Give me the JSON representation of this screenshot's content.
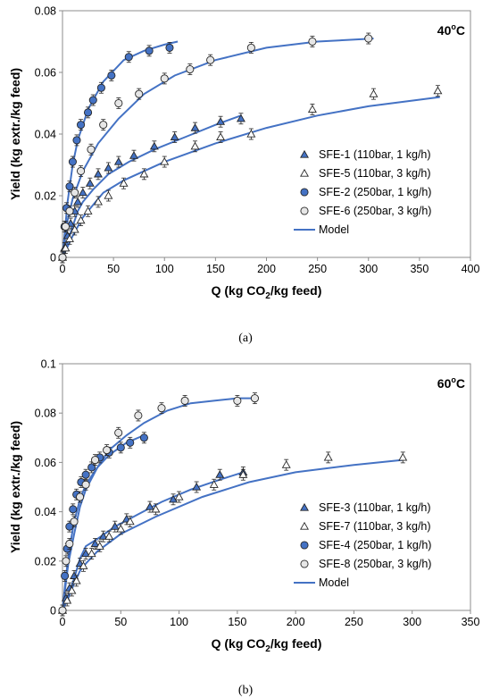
{
  "chart_data": [
    {
      "type": "scatter",
      "caption": "(a)",
      "temp_main": "40",
      "temp_sup": "o",
      "temp_unit": "C",
      "ylabel": "Yield (kg extr./kg feed)",
      "xlabel_pre": "Q (kg CO",
      "xlabel_sub": "2",
      "xlabel_post": "/kg feed)",
      "xlim": [
        0,
        400
      ],
      "ylim": [
        0,
        0.08
      ],
      "xticks": [
        0,
        50,
        100,
        150,
        200,
        250,
        300,
        350,
        400
      ],
      "xtick_labels": [
        "0",
        "50",
        "100",
        "150",
        "200",
        "250",
        "300",
        "350",
        "400"
      ],
      "yticks": [
        0,
        0.02,
        0.04,
        0.06,
        0.08
      ],
      "ytick_labels": [
        "0",
        "0.02",
        "0.04",
        "0.06",
        "0.08"
      ],
      "legend_position": "center-right",
      "legend_model_label": "Model",
      "series": [
        {
          "name": "SFE-1 (110bar, 1 kg/h)",
          "marker": "triangle",
          "fill": "#4472c4",
          "x": [
            0,
            2,
            5,
            8,
            12,
            15,
            20,
            27,
            35,
            45,
            55,
            70,
            90,
            110,
            130,
            155,
            175
          ],
          "y": [
            0,
            0.003,
            0.007,
            0.011,
            0.015,
            0.018,
            0.021,
            0.024,
            0.027,
            0.029,
            0.031,
            0.033,
            0.036,
            0.039,
            0.042,
            0.044,
            0.045
          ]
        },
        {
          "name": "SFE-5 (110bar, 3 kg/h)",
          "marker": "triangle",
          "fill": "#ffffff",
          "x": [
            0,
            3,
            7,
            12,
            18,
            25,
            35,
            45,
            60,
            80,
            100,
            130,
            155,
            185,
            245,
            305,
            368
          ],
          "y": [
            0,
            0.003,
            0.006,
            0.009,
            0.012,
            0.015,
            0.018,
            0.02,
            0.024,
            0.027,
            0.031,
            0.036,
            0.039,
            0.04,
            0.048,
            0.053,
            0.054
          ]
        },
        {
          "name": "SFE-2 (250bar, 1 kg/h)",
          "marker": "circle",
          "fill": "#4472c4",
          "x": [
            0,
            2,
            4,
            7,
            10,
            14,
            18,
            25,
            30,
            38,
            48,
            65,
            85,
            105
          ],
          "y": [
            0,
            0.01,
            0.016,
            0.023,
            0.031,
            0.038,
            0.043,
            0.047,
            0.051,
            0.055,
            0.059,
            0.065,
            0.067,
            0.068
          ]
        },
        {
          "name": "SFE-6 (250bar, 3 kg/h)",
          "marker": "circle",
          "fill": "#e6e6e6",
          "x": [
            0,
            3,
            7,
            12,
            18,
            28,
            40,
            55,
            75,
            100,
            125,
            145,
            185,
            245,
            300
          ],
          "y": [
            0,
            0.01,
            0.015,
            0.021,
            0.028,
            0.035,
            0.043,
            0.05,
            0.053,
            0.058,
            0.061,
            0.064,
            0.068,
            0.07,
            0.071
          ]
        }
      ],
      "model": [
        {
          "x": [
            0,
            5,
            10,
            15,
            25,
            40,
            60,
            80,
            100,
            113
          ],
          "y": [
            0,
            0.018,
            0.03,
            0.038,
            0.048,
            0.057,
            0.064,
            0.067,
            0.069,
            0.07
          ]
        },
        {
          "x": [
            0,
            5,
            10,
            20,
            35,
            55,
            80,
            110,
            150,
            200,
            250,
            305
          ],
          "y": [
            0,
            0.012,
            0.019,
            0.028,
            0.037,
            0.045,
            0.053,
            0.059,
            0.064,
            0.068,
            0.07,
            0.071
          ]
        },
        {
          "x": [
            0,
            5,
            10,
            15,
            20,
            30,
            45,
            65,
            90,
            120,
            150,
            175
          ],
          "y": [
            0,
            0.005,
            0.01,
            0.015,
            0.018,
            0.022,
            0.027,
            0.031,
            0.035,
            0.039,
            0.043,
            0.046
          ]
        },
        {
          "x": [
            0,
            10,
            20,
            30,
            40,
            60,
            100,
            150,
            200,
            250,
            300,
            370
          ],
          "y": [
            0,
            0.007,
            0.013,
            0.017,
            0.021,
            0.025,
            0.031,
            0.037,
            0.042,
            0.046,
            0.049,
            0.052
          ]
        }
      ]
    },
    {
      "type": "scatter",
      "caption": "(b)",
      "temp_main": "60",
      "temp_sup": "o",
      "temp_unit": "C",
      "ylabel": "Yield (kg extr./kg feed)",
      "xlabel_pre": "Q (kg CO",
      "xlabel_sub": "2",
      "xlabel_post": "/kg feed)",
      "xlim": [
        0,
        350
      ],
      "ylim": [
        0,
        0.1
      ],
      "xticks": [
        0,
        50,
        100,
        150,
        200,
        250,
        300,
        350
      ],
      "xtick_labels": [
        "0",
        "50",
        "100",
        "150",
        "200",
        "250",
        "300",
        "350"
      ],
      "yticks": [
        0,
        0.02,
        0.04,
        0.06,
        0.08,
        0.1
      ],
      "ytick_labels": [
        "0",
        "0.02",
        "0.04",
        "0.06",
        "0.08",
        "0.1"
      ],
      "legend_position": "center-right",
      "legend_model_label": "Model",
      "series": [
        {
          "name": "SFE-3 (110bar, 1 kg/h)",
          "marker": "triangle",
          "fill": "#4472c4",
          "x": [
            0,
            3,
            6,
            10,
            15,
            20,
            28,
            35,
            45,
            55,
            75,
            95,
            115,
            135,
            155
          ],
          "y": [
            0,
            0.005,
            0.009,
            0.014,
            0.019,
            0.023,
            0.027,
            0.03,
            0.034,
            0.037,
            0.042,
            0.045,
            0.05,
            0.055,
            0.056
          ]
        },
        {
          "name": "SFE-7 (110bar, 3 kg/h)",
          "marker": "triangle",
          "fill": "#ffffff",
          "x": [
            0,
            4,
            8,
            12,
            18,
            25,
            32,
            40,
            50,
            58,
            80,
            100,
            130,
            155,
            192,
            228,
            292
          ],
          "y": [
            0,
            0.004,
            0.008,
            0.012,
            0.018,
            0.023,
            0.026,
            0.03,
            0.033,
            0.036,
            0.041,
            0.046,
            0.051,
            0.055,
            0.059,
            0.062,
            0.062
          ]
        },
        {
          "name": "SFE-4 (250bar, 1 kg/h)",
          "marker": "circle",
          "fill": "#4472c4",
          "x": [
            0,
            2,
            4,
            6,
            9,
            12,
            16,
            20,
            25,
            32,
            40,
            50,
            58,
            70
          ],
          "y": [
            0,
            0.014,
            0.025,
            0.034,
            0.041,
            0.047,
            0.052,
            0.055,
            0.058,
            0.062,
            0.064,
            0.066,
            0.068,
            0.07
          ]
        },
        {
          "name": "SFE-8 (250bar, 3 kg/h)",
          "marker": "circle",
          "fill": "#e6e6e6",
          "x": [
            0,
            3,
            6,
            10,
            15,
            20,
            28,
            38,
            48,
            65,
            85,
            105,
            150,
            165
          ],
          "y": [
            0,
            0.02,
            0.027,
            0.036,
            0.046,
            0.051,
            0.061,
            0.065,
            0.072,
            0.079,
            0.082,
            0.085,
            0.085,
            0.086
          ]
        }
      ],
      "model": [
        {
          "x": [
            0,
            3,
            6,
            10,
            15,
            20,
            30,
            40,
            55,
            70
          ],
          "y": [
            0,
            0.014,
            0.025,
            0.036,
            0.045,
            0.051,
            0.058,
            0.063,
            0.068,
            0.071
          ]
        },
        {
          "x": [
            0,
            5,
            10,
            15,
            20,
            30,
            40,
            55,
            70,
            90,
            110,
            130,
            150,
            165
          ],
          "y": [
            0,
            0.019,
            0.031,
            0.042,
            0.049,
            0.058,
            0.065,
            0.071,
            0.076,
            0.081,
            0.084,
            0.085,
            0.086,
            0.086
          ]
        },
        {
          "x": [
            0,
            5,
            10,
            15,
            20,
            30,
            45,
            65,
            85,
            110,
            135,
            155
          ],
          "y": [
            0,
            0.006,
            0.013,
            0.021,
            0.026,
            0.029,
            0.034,
            0.039,
            0.044,
            0.049,
            0.053,
            0.056
          ]
        },
        {
          "x": [
            0,
            5,
            10,
            15,
            20,
            30,
            50,
            80,
            120,
            160,
            200,
            250,
            292
          ],
          "y": [
            0,
            0.005,
            0.011,
            0.016,
            0.019,
            0.024,
            0.031,
            0.038,
            0.046,
            0.052,
            0.056,
            0.059,
            0.061
          ]
        }
      ]
    }
  ]
}
